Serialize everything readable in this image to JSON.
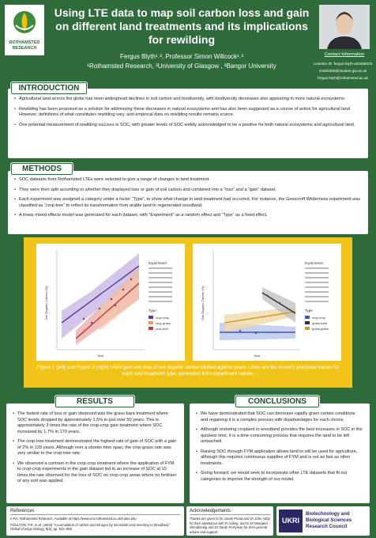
{
  "header": {
    "logo_text": "ROTHAMSTED RESEARCH",
    "title": "Using LTE data to map soil carbon loss and gain on different land treatments and its implications for rewilding",
    "authors": "Fergus Blyth¹˒², Professor Simon Willcock¹˒³",
    "affiliations": "¹Rothamsted Research, ²University of Glasgow , ³Bangor University",
    "contact": {
      "heading": "Contact Information",
      "lines": [
        "LinkedIn ID: fergus-blyth-a32d68225",
        "2439258B@student.gla.ac.uk",
        "fergus.blyth@rothamsted.ac.uk"
      ]
    }
  },
  "introduction": {
    "heading": "INTRODUCTION",
    "bullets": [
      "Agricultural land across the globe has seen widespread declines in soil carbon and biodiversity, with biodiversity decreases also appearing in more natural ecosystems.",
      "Rewilding has been proposed as a solution for addressing these decreases in natural ecosystems and has also been suggested as a course of action for agricultural land. However, definitions of what constitutes rewilding vary, and empirical data on rewilding results remains scarce.",
      "One potential measurement of rewilding success is SOC, with greater levels of SOC widely acknowledged to be a positive for both natural ecosystems and agricultural land."
    ]
  },
  "methods": {
    "heading": "METHODS",
    "bullets": [
      "SOC datasets from Rothamsted LTEs were selected to give a range of changes in land treatment.",
      "They were then split according to whether they displayed loss or gain of soil carbon and combined into a “loss” and a “gain” dataset.",
      "Each experiment was assigned a category under a factor “Type”, to show what change in land treatment had occurred. For instance, the Geescroft Wilderness experiment was classified as “crop-tree” to reflect its transformation from arable land to regenerated woodland.",
      "A linear mixed effects model was generated for each dataset, with “Experiment” as a random effect and “Type” as a fixed effect."
    ]
  },
  "figures": {
    "plots": [
      {
        "y_label": "Soil Organic Carbon (%)",
        "x_label": "Year",
        "legend_experiment": "Experiment",
        "legend_type": "Type",
        "types": [
          "crop-crop",
          "crop-grass",
          "crop-tree"
        ]
      },
      {
        "y_label": "Soil Organic Carbon (%)",
        "x_label": "Year",
        "legend_experiment": "Experiment",
        "legend_type": "Type",
        "types": [
          "crop-crop",
          "grass-bare",
          "grass-grass"
        ]
      }
    ],
    "caption": "Figure 1 (left) and Figure 2 (right) show gain and loss of soil organic carbon plotted against years. Lines are the model’s predicted values for each land treatment type, generated from experiment values."
  },
  "results": {
    "heading": "RESULTS",
    "bullets": [
      "The fastest rate of loss or gain observed was the grass-bare treatment where SOC levels dropped by approximately 1.5% in just over 50 years. This is approximately 3 times the rate of the crop-crop gain treatment where SOC increased by 1.7% in 170 years.",
      "The crop-tree treatment demonstrated the highest rate of gain of SOC with a gain of 2% in 120 years. Although over a shorter time span, the crop-grass rate was very similar to the crop-tree rate.",
      "We observed a contrast in the crop-crop treatment where the application of FYM to crop-crop experiments in the gain dataset led to an increase of SOC at 10 times the rate observed for the loss of SOC on crop-crop areas where no fertiliser of any sort was applied."
    ]
  },
  "conclusions": {
    "heading": "CONCLUSIONS",
    "bullets": [
      "We have demonstrated that SOC can decrease rapidly given certain conditions and regaining it is a complex process with disadvantages for each choice.",
      "Although restoring cropland to woodland provides the best increases in SOC in the quickest time, it is a time-consuming process that requires the land to be left untouched.",
      "Raising SOC through FYM application allows land to still be used for agriculture, although this requires continuous supplies of FYM and is not as fast as other treatments.",
      "Going forward, we would seek to incorporate other LTE datasets that fit our categories to improve the strength of our model."
    ]
  },
  "references": {
    "heading": "References",
    "items": [
      "e-RA, Rothamsted Research. Available at https://www.era.rothamsted.ac.uk/index.php",
      "POULTON, P.R. et al. (2003) “Accumulation of carbon and nitrogen by old arable land reverting to Woodland,” Global Change Biology, 9(6), pp. 942–955"
    ]
  },
  "acknowledgements": {
    "heading": "Acknowledgements",
    "text": "Thanks are given to Dr Jonah Proud and Dr John Addy for their assistance with R coding, and to Dr Margaret Glendinning and Dr Sarah Perryman for their general advice and support."
  },
  "funder": {
    "logo": "UKRI",
    "name": "Biotechnology and Biological Sciences Research Council"
  }
}
